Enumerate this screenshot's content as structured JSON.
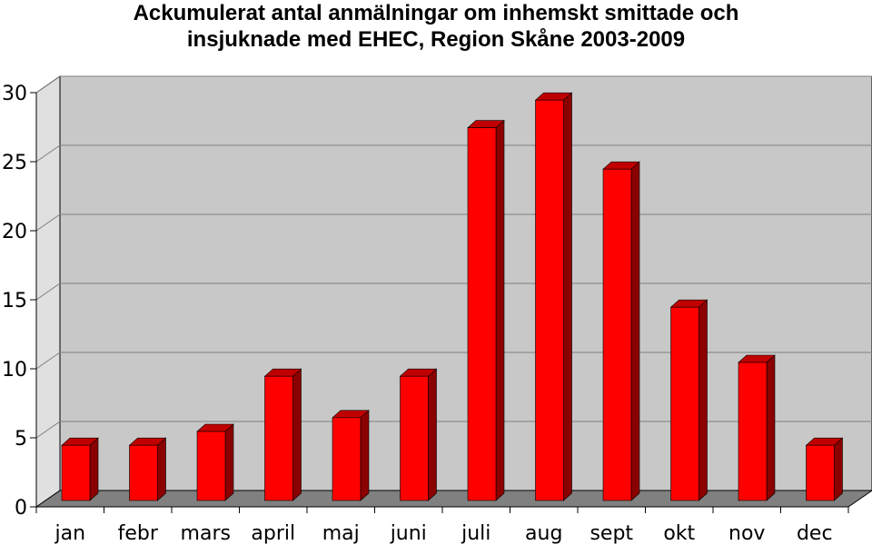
{
  "chart_data": {
    "type": "bar",
    "title_lines": [
      "Ackumulerat antal anmälningar om inhemskt smittade och",
      "insjuknade med EHEC, Region Skåne 2003-2009"
    ],
    "categories": [
      "jan",
      "febr",
      "mars",
      "april",
      "maj",
      "juni",
      "juli",
      "aug",
      "sept",
      "okt",
      "nov",
      "dec"
    ],
    "values": [
      4,
      4,
      5,
      9,
      6,
      9,
      27,
      29,
      24,
      14,
      10,
      4
    ],
    "ylim": [
      0,
      30
    ],
    "yticks": [
      0,
      5,
      10,
      15,
      20,
      25,
      30
    ],
    "xlabel": "",
    "ylabel": "",
    "grid": true,
    "legend": "none",
    "style": "3d-column",
    "colors": {
      "bar_front": "#ff0000",
      "bar_side": "#8b0000",
      "bar_top": "#c00000",
      "wall": "#c8c8c8",
      "side_wall": "#e0e0e0",
      "floor": "#808080",
      "grid": "#7f7f7f"
    }
  }
}
